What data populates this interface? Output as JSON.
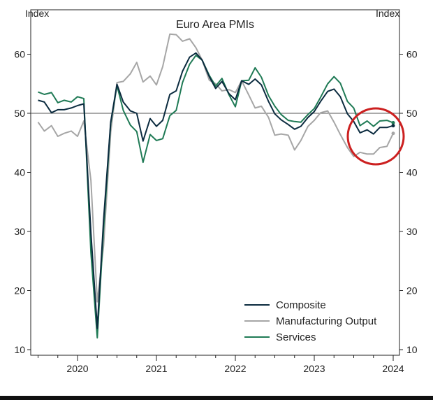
{
  "chart_data": {
    "type": "line",
    "title": "Euro Area PMIs",
    "y_left_label": "Index",
    "y_right_label": "Index",
    "ylim": [
      10,
      65
    ],
    "y_ticks": [
      10,
      20,
      30,
      40,
      50,
      60
    ],
    "x_range": [
      2019.42,
      2024.17
    ],
    "x_ticks": [
      "2020",
      "2021",
      "2022",
      "2023",
      "2024"
    ],
    "reference_line": 50,
    "legend_position": "bottom-right",
    "legend": [
      "Composite",
      "Manufacturing Output",
      "Services"
    ],
    "colors": {
      "composite": "#0b2b3f",
      "manufacturing": "#a6a6a6",
      "services": "#1f7a55",
      "highlight": "#cc2020"
    },
    "series": [
      {
        "name": "Composite",
        "x": [
          2019.5,
          2019.58,
          2019.67,
          2019.75,
          2019.83,
          2019.92,
          2020.0,
          2020.08,
          2020.17,
          2020.25,
          2020.33,
          2020.42,
          2020.5,
          2020.58,
          2020.67,
          2020.75,
          2020.83,
          2020.92,
          2021.0,
          2021.08,
          2021.17,
          2021.25,
          2021.33,
          2021.42,
          2021.5,
          2021.58,
          2021.67,
          2021.75,
          2021.83,
          2021.92,
          2022.0,
          2022.08,
          2022.17,
          2022.25,
          2022.33,
          2022.42,
          2022.5,
          2022.58,
          2022.67,
          2022.75,
          2022.83,
          2022.92,
          2023.0,
          2023.08,
          2023.17,
          2023.25,
          2023.33,
          2023.42,
          2023.5,
          2023.58,
          2023.67,
          2023.75,
          2023.83,
          2023.92,
          2024.0
        ],
        "values": [
          52.2,
          51.9,
          50.1,
          50.6,
          50.6,
          50.9,
          51.3,
          51.6,
          29.7,
          13.6,
          31.9,
          48.5,
          54.9,
          51.9,
          50.4,
          50.0,
          45.3,
          49.1,
          47.8,
          48.8,
          53.2,
          53.8,
          57.1,
          59.5,
          60.2,
          59.0,
          56.2,
          54.2,
          55.4,
          53.3,
          52.3,
          55.5,
          54.9,
          55.8,
          54.8,
          52.0,
          49.9,
          48.9,
          48.1,
          47.3,
          47.8,
          49.3,
          50.3,
          52.0,
          53.7,
          54.1,
          52.8,
          49.9,
          48.6,
          46.7,
          47.2,
          46.5,
          47.6,
          47.6,
          47.9
        ]
      },
      {
        "name": "Manufacturing Output",
        "x": [
          2019.5,
          2019.58,
          2019.67,
          2019.75,
          2019.83,
          2019.92,
          2020.0,
          2020.08,
          2020.17,
          2020.25,
          2020.33,
          2020.42,
          2020.5,
          2020.58,
          2020.67,
          2020.75,
          2020.83,
          2020.92,
          2021.0,
          2021.08,
          2021.17,
          2021.25,
          2021.33,
          2021.42,
          2021.5,
          2021.58,
          2021.67,
          2021.75,
          2021.83,
          2021.92,
          2022.0,
          2022.08,
          2022.17,
          2022.25,
          2022.33,
          2022.42,
          2022.5,
          2022.58,
          2022.67,
          2022.75,
          2022.83,
          2022.92,
          2023.0,
          2023.08,
          2023.17,
          2023.25,
          2023.33,
          2023.42,
          2023.5,
          2023.58,
          2023.67,
          2023.75,
          2023.83,
          2023.92,
          2024.0
        ],
        "values": [
          48.5,
          47.0,
          47.9,
          46.1,
          46.6,
          47.0,
          46.1,
          48.7,
          38.6,
          18.1,
          27.6,
          46.8,
          55.2,
          55.4,
          56.7,
          58.6,
          55.3,
          56.3,
          54.8,
          57.9,
          63.4,
          63.3,
          62.2,
          62.6,
          61.1,
          59.0,
          55.6,
          55.0,
          53.8,
          54.0,
          53.5,
          55.5,
          53.1,
          50.9,
          51.2,
          49.3,
          46.3,
          46.5,
          46.3,
          43.8,
          45.4,
          47.8,
          48.8,
          50.1,
          50.4,
          48.5,
          46.4,
          44.2,
          42.7,
          43.4,
          43.1,
          43.1,
          44.2,
          44.4,
          46.6
        ]
      },
      {
        "name": "Services",
        "x": [
          2019.5,
          2019.58,
          2019.67,
          2019.75,
          2019.83,
          2019.92,
          2020.0,
          2020.08,
          2020.17,
          2020.25,
          2020.33,
          2020.42,
          2020.5,
          2020.58,
          2020.67,
          2020.75,
          2020.83,
          2020.92,
          2021.0,
          2021.08,
          2021.17,
          2021.25,
          2021.33,
          2021.42,
          2021.5,
          2021.58,
          2021.67,
          2021.75,
          2021.83,
          2021.92,
          2022.0,
          2022.08,
          2022.17,
          2022.25,
          2022.33,
          2022.42,
          2022.5,
          2022.58,
          2022.67,
          2022.75,
          2022.83,
          2022.92,
          2023.0,
          2023.08,
          2023.17,
          2023.25,
          2023.33,
          2023.42,
          2023.5,
          2023.58,
          2023.67,
          2023.75,
          2023.83,
          2023.92,
          2024.0
        ],
        "values": [
          53.6,
          53.2,
          53.5,
          51.8,
          52.2,
          51.9,
          52.8,
          52.5,
          26.4,
          12.0,
          30.5,
          48.3,
          54.7,
          50.5,
          48.0,
          46.9,
          41.7,
          46.4,
          45.4,
          45.7,
          49.6,
          50.5,
          55.2,
          58.3,
          59.8,
          59.0,
          56.4,
          54.6,
          55.9,
          53.1,
          51.1,
          55.5,
          55.6,
          57.7,
          56.1,
          53.0,
          51.2,
          49.8,
          48.8,
          48.6,
          48.5,
          49.8,
          50.8,
          52.7,
          55.0,
          56.2,
          55.1,
          52.0,
          50.9,
          47.9,
          48.7,
          47.8,
          48.7,
          48.8,
          48.4
        ]
      }
    ]
  }
}
